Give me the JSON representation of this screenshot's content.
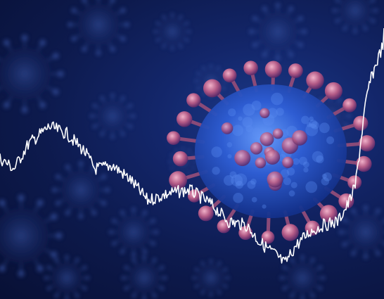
{
  "scene": {
    "description_type": "virus-and-market-chart-illustration",
    "colors": {
      "background_dark": "#081035",
      "background_mid": "#13266a",
      "virus_body": "#2a55c8",
      "virus_spike": "#c46a8a",
      "line": "#ffffff"
    }
  }
}
